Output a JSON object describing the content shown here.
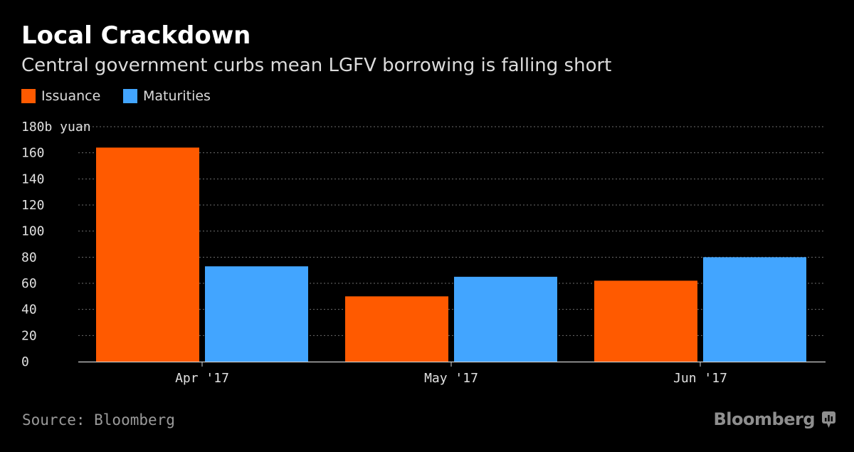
{
  "chart_data": {
    "type": "bar",
    "title": "Local Crackdown",
    "subtitle": "Central government curbs mean LGFV borrowing is falling short",
    "categories": [
      "Apr '17",
      "May '17",
      "Jun '17"
    ],
    "series": [
      {
        "name": "Issuance",
        "color": "#ff5a00",
        "values": [
          164,
          50,
          62
        ]
      },
      {
        "name": "Maturities",
        "color": "#42a5ff",
        "values": [
          73,
          65,
          80
        ]
      }
    ],
    "yticks": [
      "0",
      "20",
      "40",
      "60",
      "80",
      "100",
      "120",
      "140",
      "160",
      "180b yuan"
    ],
    "ylim": [
      0,
      180
    ],
    "ylabel": "b yuan",
    "xlabel": "",
    "grid": true,
    "legend": "top-left"
  },
  "source": "Source: Bloomberg",
  "brand": "Bloomberg"
}
